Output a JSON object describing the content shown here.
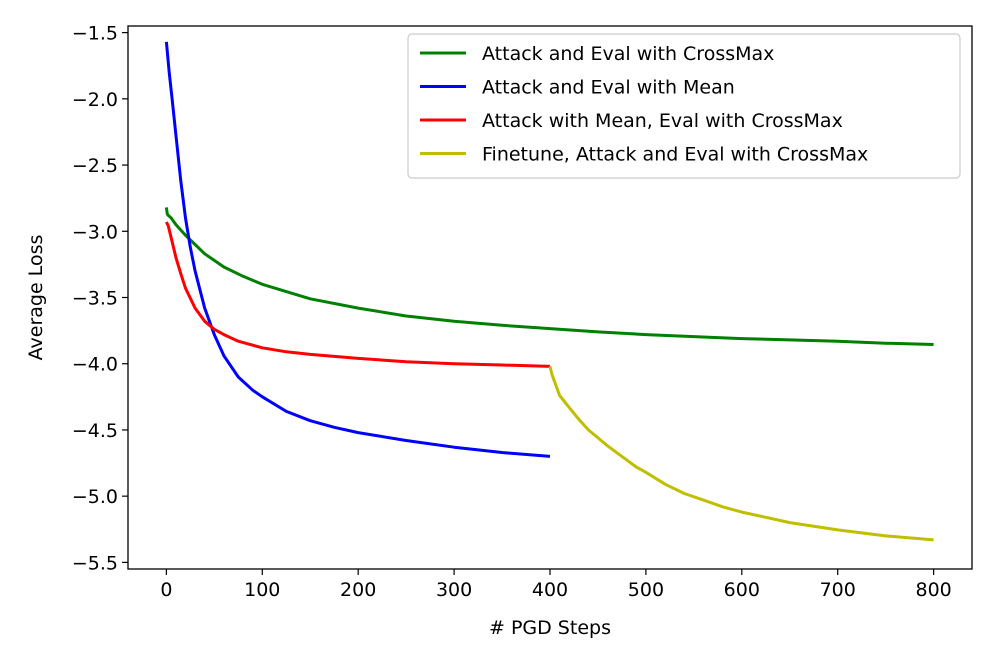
{
  "chart_data": {
    "type": "line",
    "title": "",
    "xlabel": "# PGD Steps",
    "ylabel": "Average Loss",
    "xlim": [
      -40,
      840
    ],
    "ylim": [
      -5.55,
      -1.45
    ],
    "xticks": [
      0,
      100,
      200,
      300,
      400,
      500,
      600,
      700,
      800
    ],
    "yticks": [
      -1.5,
      -2.0,
      -2.5,
      -3.0,
      -3.5,
      -4.0,
      -4.5,
      -5.0,
      -5.5
    ],
    "xtick_labels": [
      "0",
      "100",
      "200",
      "300",
      "400",
      "500",
      "600",
      "700",
      "800"
    ],
    "ytick_labels": [
      "−1.5",
      "−2.0",
      "−2.5",
      "−3.0",
      "−3.5",
      "−4.0",
      "−4.5",
      "−5.0",
      "−5.5"
    ],
    "grid": false,
    "legend_position": "top-right",
    "series": [
      {
        "name": "Attack and Eval with CrossMax",
        "color": "#008000",
        "x": [
          0,
          1,
          2,
          5,
          10,
          20,
          30,
          40,
          60,
          80,
          100,
          150,
          200,
          250,
          300,
          350,
          400,
          450,
          500,
          550,
          600,
          650,
          700,
          750,
          800
        ],
        "y": [
          -2.82,
          -2.87,
          -2.88,
          -2.9,
          -2.95,
          -3.03,
          -3.1,
          -3.17,
          -3.27,
          -3.34,
          -3.4,
          -3.51,
          -3.58,
          -3.64,
          -3.68,
          -3.71,
          -3.735,
          -3.76,
          -3.78,
          -3.795,
          -3.81,
          -3.82,
          -3.83,
          -3.845,
          -3.855
        ]
      },
      {
        "name": "Attack and Eval with Mean",
        "color": "#0000ff",
        "x": [
          0,
          3,
          6,
          10,
          15,
          20,
          25,
          30,
          40,
          50,
          60,
          75,
          90,
          100,
          125,
          150,
          175,
          200,
          250,
          300,
          350,
          400
        ],
        "y": [
          -1.57,
          -1.8,
          -2.0,
          -2.28,
          -2.62,
          -2.9,
          -3.12,
          -3.3,
          -3.58,
          -3.78,
          -3.94,
          -4.1,
          -4.2,
          -4.25,
          -4.36,
          -4.43,
          -4.48,
          -4.52,
          -4.58,
          -4.63,
          -4.67,
          -4.7
        ]
      },
      {
        "name": "Attack with Mean, Eval with CrossMax",
        "color": "#ff0000",
        "x": [
          0,
          2,
          5,
          10,
          15,
          20,
          30,
          40,
          50,
          60,
          75,
          100,
          125,
          150,
          200,
          250,
          300,
          350,
          400
        ],
        "y": [
          -2.93,
          -2.96,
          -3.05,
          -3.2,
          -3.32,
          -3.43,
          -3.58,
          -3.68,
          -3.74,
          -3.78,
          -3.83,
          -3.88,
          -3.91,
          -3.93,
          -3.96,
          -3.985,
          -4.0,
          -4.01,
          -4.02
        ]
      },
      {
        "name": "Finetune, Attack and Eval with CrossMax",
        "color": "#bfbf00",
        "x": [
          400,
          402,
          405,
          410,
          420,
          430,
          440,
          450,
          460,
          475,
          490,
          500,
          520,
          540,
          560,
          580,
          600,
          625,
          650,
          700,
          750,
          800
        ],
        "y": [
          -4.02,
          -4.08,
          -4.14,
          -4.24,
          -4.33,
          -4.42,
          -4.5,
          -4.56,
          -4.62,
          -4.7,
          -4.78,
          -4.82,
          -4.91,
          -4.98,
          -5.03,
          -5.08,
          -5.12,
          -5.16,
          -5.2,
          -5.255,
          -5.3,
          -5.33
        ]
      }
    ]
  }
}
